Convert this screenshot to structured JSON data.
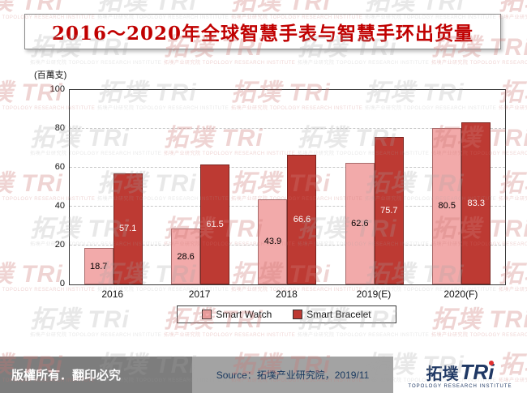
{
  "title": "2016～2020年全球智慧手表与智慧手环出货量",
  "y_unit_label": "(百萬支)",
  "chart_data": {
    "type": "bar",
    "title": "2016～2020年全球智慧手表与智慧手环出货量",
    "categories": [
      "2016",
      "2017",
      "2018",
      "2019(E)",
      "2020(F)"
    ],
    "series": [
      {
        "name": "Smart Watch",
        "color": "#f2aaaa",
        "border": "#a86a6a",
        "label_color": "#000000",
        "values": [
          18.7,
          28.6,
          43.9,
          62.6,
          80.5
        ]
      },
      {
        "name": "Smart Bracelet",
        "color": "#bd3a33",
        "border": "#7a241f",
        "label_color": "#ffffff",
        "values": [
          57.1,
          61.5,
          66.6,
          75.7,
          83.3
        ]
      }
    ],
    "xlabel": "",
    "ylabel": "(百萬支)",
    "ylim": [
      0,
      100
    ],
    "yticks": [
      0,
      20,
      40,
      60,
      80,
      100
    ],
    "grid": true,
    "legend_position": "bottom"
  },
  "footer": {
    "copyright": "版權所有．翻印必究",
    "source": "Source：拓墣产业研究院，2019/11",
    "logo_text": "拓墣",
    "logo_tri": "TRi",
    "logo_subtext": "TOPOLOGY RESEARCH INSTITUTE"
  },
  "watermark": {
    "text": "拓墣 TRi",
    "subtext": "拓墣产业研究院 TOPOLOGY RESEARCH INSTITUTE"
  },
  "colors": {
    "title_red": "#c00000",
    "bar_light": "#f2aaaa",
    "bar_dark": "#bd3a33",
    "footer_left_bg": "#7d7d7d",
    "footer_mid_bg": "#a3a3a3",
    "navy": "#1f3864"
  }
}
